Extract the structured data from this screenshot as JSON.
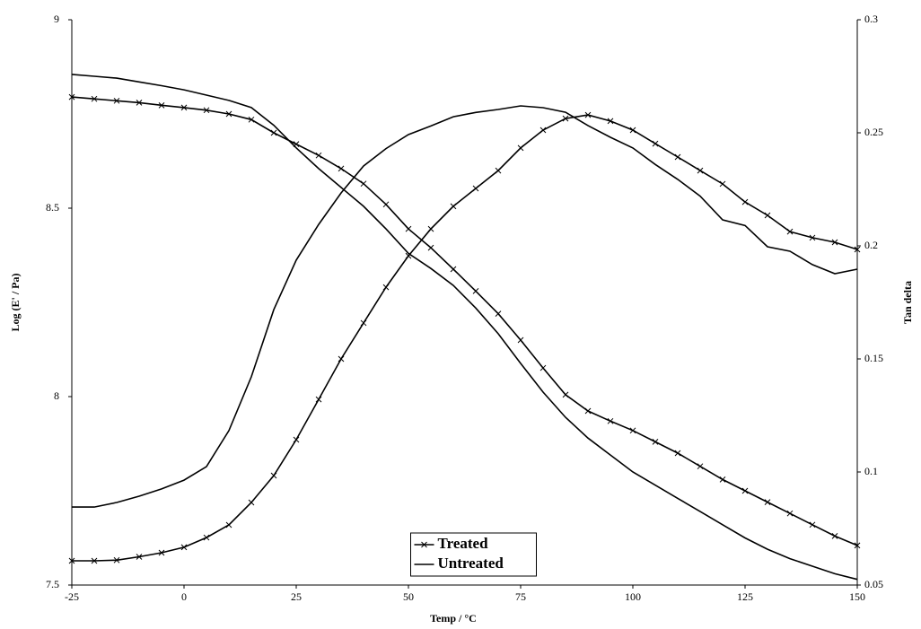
{
  "chart_data": {
    "type": "line",
    "x_label": "Temp / °C",
    "y_label": "Log (E' / Pa)",
    "y2_label": "Tan delta",
    "x": [
      -25,
      -20,
      -15,
      -10,
      -5,
      0,
      5,
      10,
      15,
      20,
      25,
      30,
      35,
      40,
      45,
      50,
      55,
      60,
      65,
      70,
      75,
      80,
      85,
      90,
      95,
      100,
      105,
      110,
      115,
      120,
      125,
      130,
      135,
      140,
      145,
      150
    ],
    "xlim": [
      -25,
      150
    ],
    "xticks": [
      -25,
      0,
      25,
      50,
      75,
      100,
      125,
      150
    ],
    "ylim": [
      7.5,
      9
    ],
    "yticks": [
      7.5,
      8,
      8.5,
      9
    ],
    "y2lim": [
      0.05,
      0.3
    ],
    "y2ticks": [
      0.05,
      0.1,
      0.15,
      0.2,
      0.25,
      0.3
    ],
    "legend": "bottom-center",
    "series": [
      {
        "name": "Treated",
        "color": "#000000",
        "marker": "x",
        "values": [
          8.795,
          8.79,
          8.785,
          8.78,
          8.773,
          8.767,
          8.76,
          8.75,
          8.735,
          8.7,
          8.67,
          8.64,
          8.605,
          8.565,
          8.51,
          8.445,
          8.395,
          8.338,
          8.28,
          8.22,
          8.15,
          8.076,
          8.005,
          7.962,
          7.935,
          7.91,
          7.88,
          7.85,
          7.815,
          7.78,
          7.75,
          7.72,
          7.69,
          7.66,
          7.63,
          7.605
        ]
      },
      {
        "name": "Untreated",
        "color": "#000000",
        "values": [
          8.855,
          8.85,
          8.845,
          8.835,
          8.825,
          8.814,
          8.8,
          8.786,
          8.767,
          8.72,
          8.66,
          8.605,
          8.555,
          8.505,
          8.445,
          8.38,
          8.34,
          8.295,
          8.235,
          8.167,
          8.088,
          8.012,
          7.945,
          7.89,
          7.845,
          7.8,
          7.765,
          7.73,
          7.695,
          7.66,
          7.625,
          7.595,
          7.57,
          7.55,
          7.53,
          7.515
        ]
      },
      {
        "color": "#000000",
        "marker": "x",
        "axis": "y2",
        "values": [
          0.0607,
          0.0607,
          0.061,
          0.0625,
          0.0643,
          0.0667,
          0.071,
          0.0766,
          0.0865,
          0.0984,
          0.1143,
          0.1321,
          0.15,
          0.1659,
          0.1817,
          0.1956,
          0.2075,
          0.2175,
          0.2254,
          0.2333,
          0.2433,
          0.2512,
          0.2563,
          0.2579,
          0.2552,
          0.2512,
          0.2452,
          0.2393,
          0.2333,
          0.2274,
          0.2194,
          0.2135,
          0.2063,
          0.2036,
          0.2016,
          0.1984
        ]
      },
      {
        "color": "#000000",
        "axis": "y2",
        "values": [
          0.0845,
          0.0845,
          0.0865,
          0.0893,
          0.0925,
          0.0964,
          0.1024,
          0.1183,
          0.1421,
          0.1718,
          0.1937,
          0.2095,
          0.2234,
          0.2353,
          0.243,
          0.2492,
          0.253,
          0.2571,
          0.259,
          0.2603,
          0.2619,
          0.2611,
          0.2591,
          0.2532,
          0.248,
          0.2433,
          0.236,
          0.2294,
          0.222,
          0.2115,
          0.209,
          0.1996,
          0.1976,
          0.1917,
          0.1877,
          0.1897
        ]
      }
    ]
  }
}
